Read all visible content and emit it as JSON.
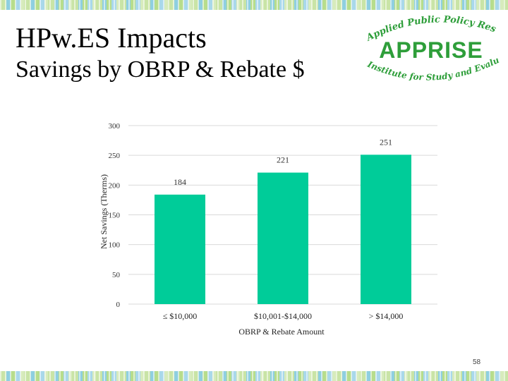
{
  "slide": {
    "title": "HPw.ES Impacts",
    "subtitle": "Savings by OBRP & Rebate $",
    "page_number": "58"
  },
  "logo": {
    "top_text": "Applied Public Policy Research",
    "main_text": "APPRISE",
    "bottom_text": "Institute for Study and Evaluation",
    "color": "#2e9e3a"
  },
  "colors": {
    "bar": "#00cc99",
    "grid": "#d9d9d9"
  },
  "chart_data": {
    "type": "bar",
    "title": "",
    "categories": [
      "≤ $10,000",
      "$10,001-$14,000",
      "> $14,000"
    ],
    "values": [
      184,
      221,
      251
    ],
    "data_labels": [
      "184",
      "221",
      "251"
    ],
    "xlabel": "OBRP & Rebate Amount",
    "ylabel": "Net Savings (Therms)",
    "ylim": [
      0,
      300
    ],
    "yticks": [
      0,
      50,
      100,
      150,
      200,
      250,
      300
    ],
    "grid": true,
    "legend": "none"
  }
}
